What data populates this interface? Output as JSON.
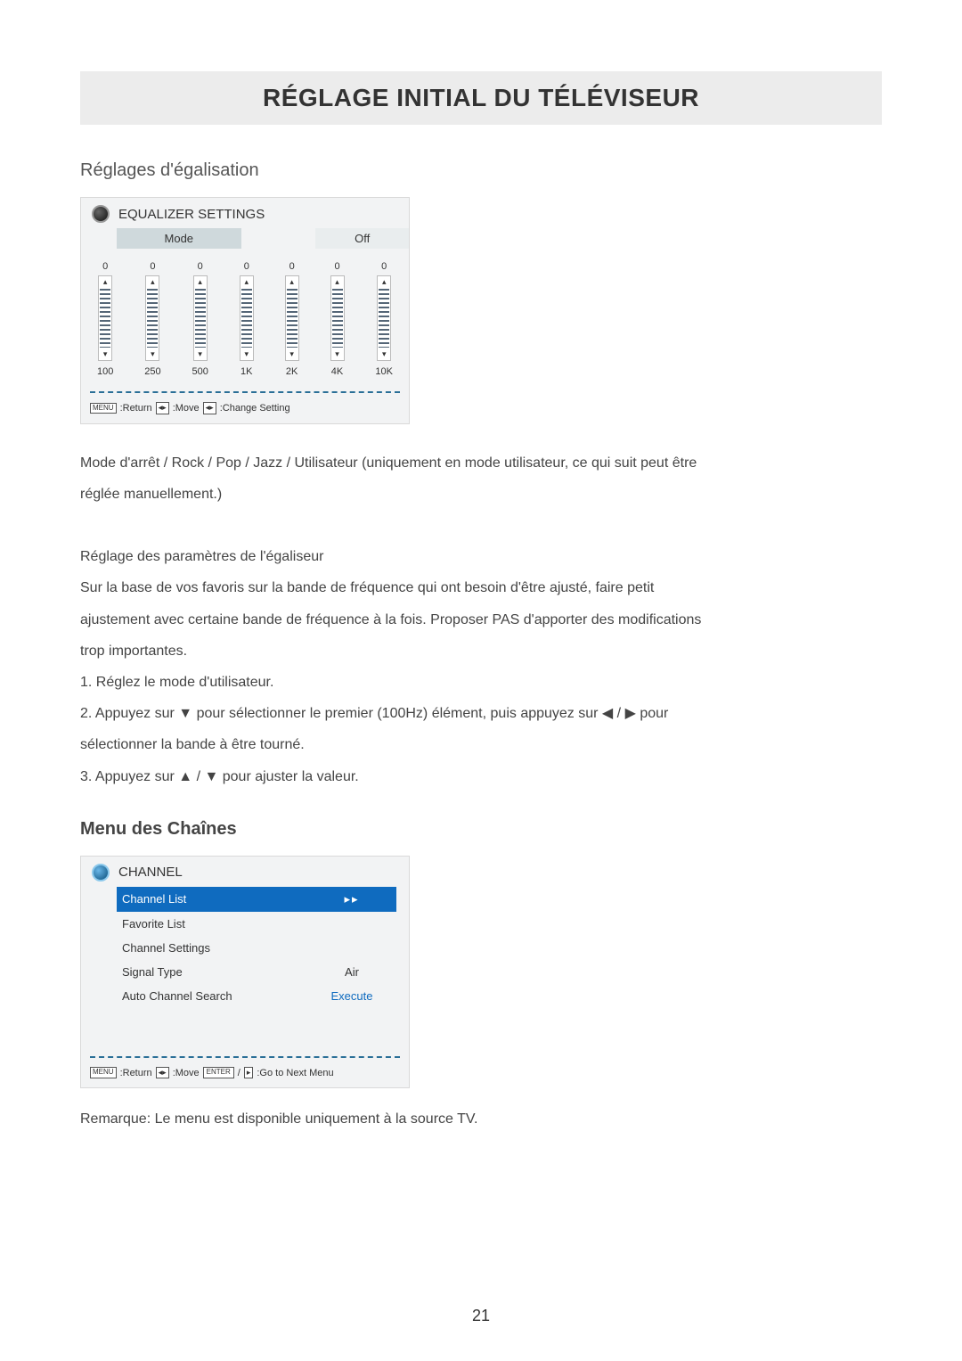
{
  "title": "RÉGLAGE INITIAL DU TÉLÉVISEUR",
  "eq_section_title": "Réglages d'égalisation",
  "equalizer": {
    "panel_title": "EQUALIZER SETTINGS",
    "mode_label": "Mode",
    "mode_value": "Off",
    "bands": [
      {
        "value": "0",
        "freq": "100"
      },
      {
        "value": "0",
        "freq": "250"
      },
      {
        "value": "0",
        "freq": "500"
      },
      {
        "value": "0",
        "freq": "1K"
      },
      {
        "value": "0",
        "freq": "2K"
      },
      {
        "value": "0",
        "freq": "4K"
      },
      {
        "value": "0",
        "freq": "10K"
      }
    ],
    "hints": {
      "menu_key": "MENU",
      "return": ":Return",
      "move": ":Move",
      "change": ":Change Setting"
    }
  },
  "eq_text": {
    "l1": "Mode d'arrêt / Rock / Pop / Jazz / Utilisateur (uniquement en mode utilisateur, ce qui suit peut être",
    "l2": "réglée manuellement.)",
    "l3": "Réglage des paramètres de l'égaliseur",
    "l4": "Sur la base de vos favoris sur la bande de fréquence qui ont besoin d'être ajusté, faire petit",
    "l5": "ajustement avec certaine bande de fréquence à la fois. Proposer PAS d'apporter des modifications",
    "l6": "trop importantes.",
    "l7": "1. Réglez le mode d'utilisateur.",
    "l8a": "2. Appuyez sur ",
    "l8b": " pour sélectionner le premier (100Hz) élément, puis appuyez sur ",
    "l8c": " pour",
    "l9": "sélectionner la bande à être tourné.",
    "l10a": "3. Appuyez sur ",
    "l10b": " pour ajuster la valeur."
  },
  "channel_section_title": "Menu des Chaînes",
  "channel": {
    "panel_title": "CHANNEL",
    "rows": [
      {
        "label": "Channel List",
        "value": "▸▸",
        "selected": true
      },
      {
        "label": "Favorite List",
        "value": ""
      },
      {
        "label": "Channel Settings",
        "value": ""
      },
      {
        "label": "Signal Type",
        "value": "Air"
      },
      {
        "label": "Auto Channel Search",
        "value": "Execute",
        "link": true
      }
    ],
    "hints": {
      "menu_key": "MENU",
      "return": ":Return",
      "move": ":Move",
      "enter_key": "ENTER",
      "goto": ":Go to Next Menu"
    }
  },
  "remark": "Remarque: Le menu est disponible uniquement à la source TV.",
  "page_number": "21",
  "colors": {
    "title_bg": "#ececec",
    "panel_bg": "#f2f3f4",
    "selected_bg": "#0f6bbf",
    "dash_color": "#2a6f97"
  }
}
